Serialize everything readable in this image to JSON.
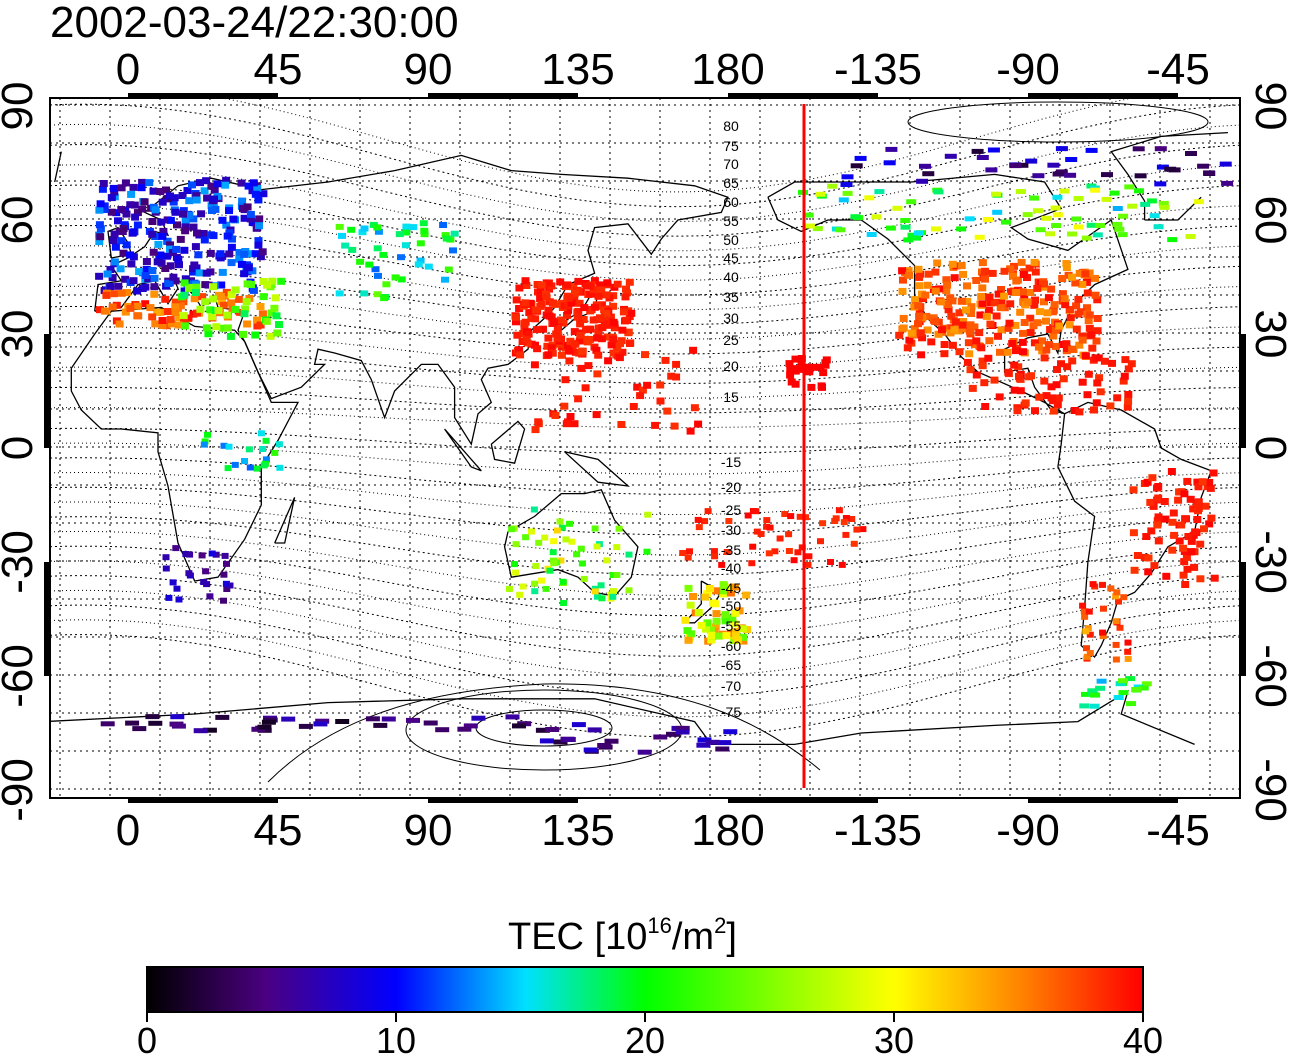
{
  "header": {
    "timestamp": "2002-03-24/22:30:00"
  },
  "map": {
    "lon_ticks": [
      "0",
      "45",
      "90",
      "135",
      "180",
      "-135",
      "-90",
      "-45"
    ],
    "lat_ticks": [
      "90",
      "60",
      "30",
      "0",
      "-30",
      "-60",
      "-90"
    ],
    "contour_labels": [
      "80",
      "75",
      "70",
      "65",
      "60",
      "55",
      "50",
      "45",
      "40",
      "35",
      "30",
      "25",
      "20",
      "15",
      "-15",
      "-20",
      "-25",
      "-30",
      "-35",
      "-40",
      "-45",
      "-50",
      "-55",
      "-60",
      "-65",
      "-70",
      "-75"
    ],
    "marker_line_color": "#ff0000"
  },
  "colorbar": {
    "title_main": "TEC  [10",
    "title_exp1": "16",
    "title_mid": "/m",
    "title_exp2": "2",
    "title_end": "]",
    "ticks": [
      "0",
      "10",
      "20",
      "30",
      "40"
    ],
    "colors": [
      "#000000",
      "#4b0082",
      "#0000ff",
      "#00ffff",
      "#00ff00",
      "#ffff00",
      "#ff8000",
      "#ff0000"
    ]
  }
}
